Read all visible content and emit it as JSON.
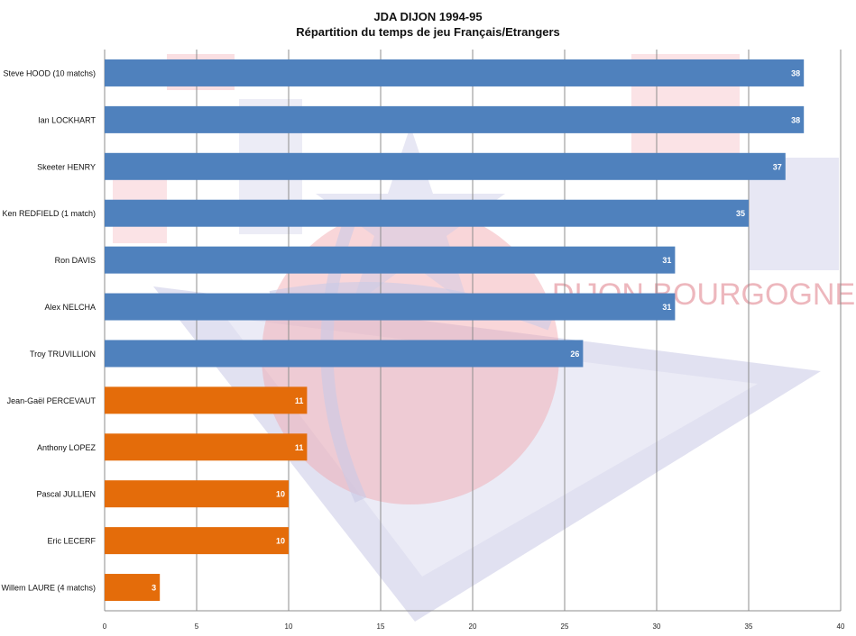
{
  "chart_data": {
    "type": "bar",
    "orientation": "horizontal",
    "title": "JDA DIJON 1994-95",
    "subtitle": "Répartition du temps de jeu Français/Etrangers",
    "xlabel": "",
    "ylabel": "",
    "xlim": [
      0,
      40
    ],
    "x_ticks": [
      0,
      5,
      10,
      15,
      20,
      25,
      30,
      35,
      40
    ],
    "grid": "vertical",
    "legend": "none",
    "categories": [
      "Steve HOOD (10 matchs)",
      "Ian LOCKHART",
      "Skeeter HENRY",
      "Ken REDFIELD (1 match)",
      "Ron DAVIS",
      "Alex NELCHA",
      "Troy TRUVILLION",
      "Jean-Gaël PERCEVAUT",
      "Anthony LOPEZ",
      "Pascal JULLIEN",
      "Eric LECERF",
      "Willem LAURE (4 matchs)"
    ],
    "values": [
      38,
      38,
      37,
      35,
      31,
      31,
      26,
      11,
      11,
      10,
      10,
      3
    ],
    "bar_colors": [
      "#4f81bd",
      "#4f81bd",
      "#4f81bd",
      "#4f81bd",
      "#4f81bd",
      "#4f81bd",
      "#4f81bd",
      "#e46c0a",
      "#e46c0a",
      "#e46c0a",
      "#e46c0a",
      "#e46c0a"
    ]
  },
  "watermark": {
    "text": "DIJON BOURGOGNE",
    "color": "#e8a0a8",
    "court_color": "#c9c9e6",
    "ball_color": "#f2a3ab"
  }
}
